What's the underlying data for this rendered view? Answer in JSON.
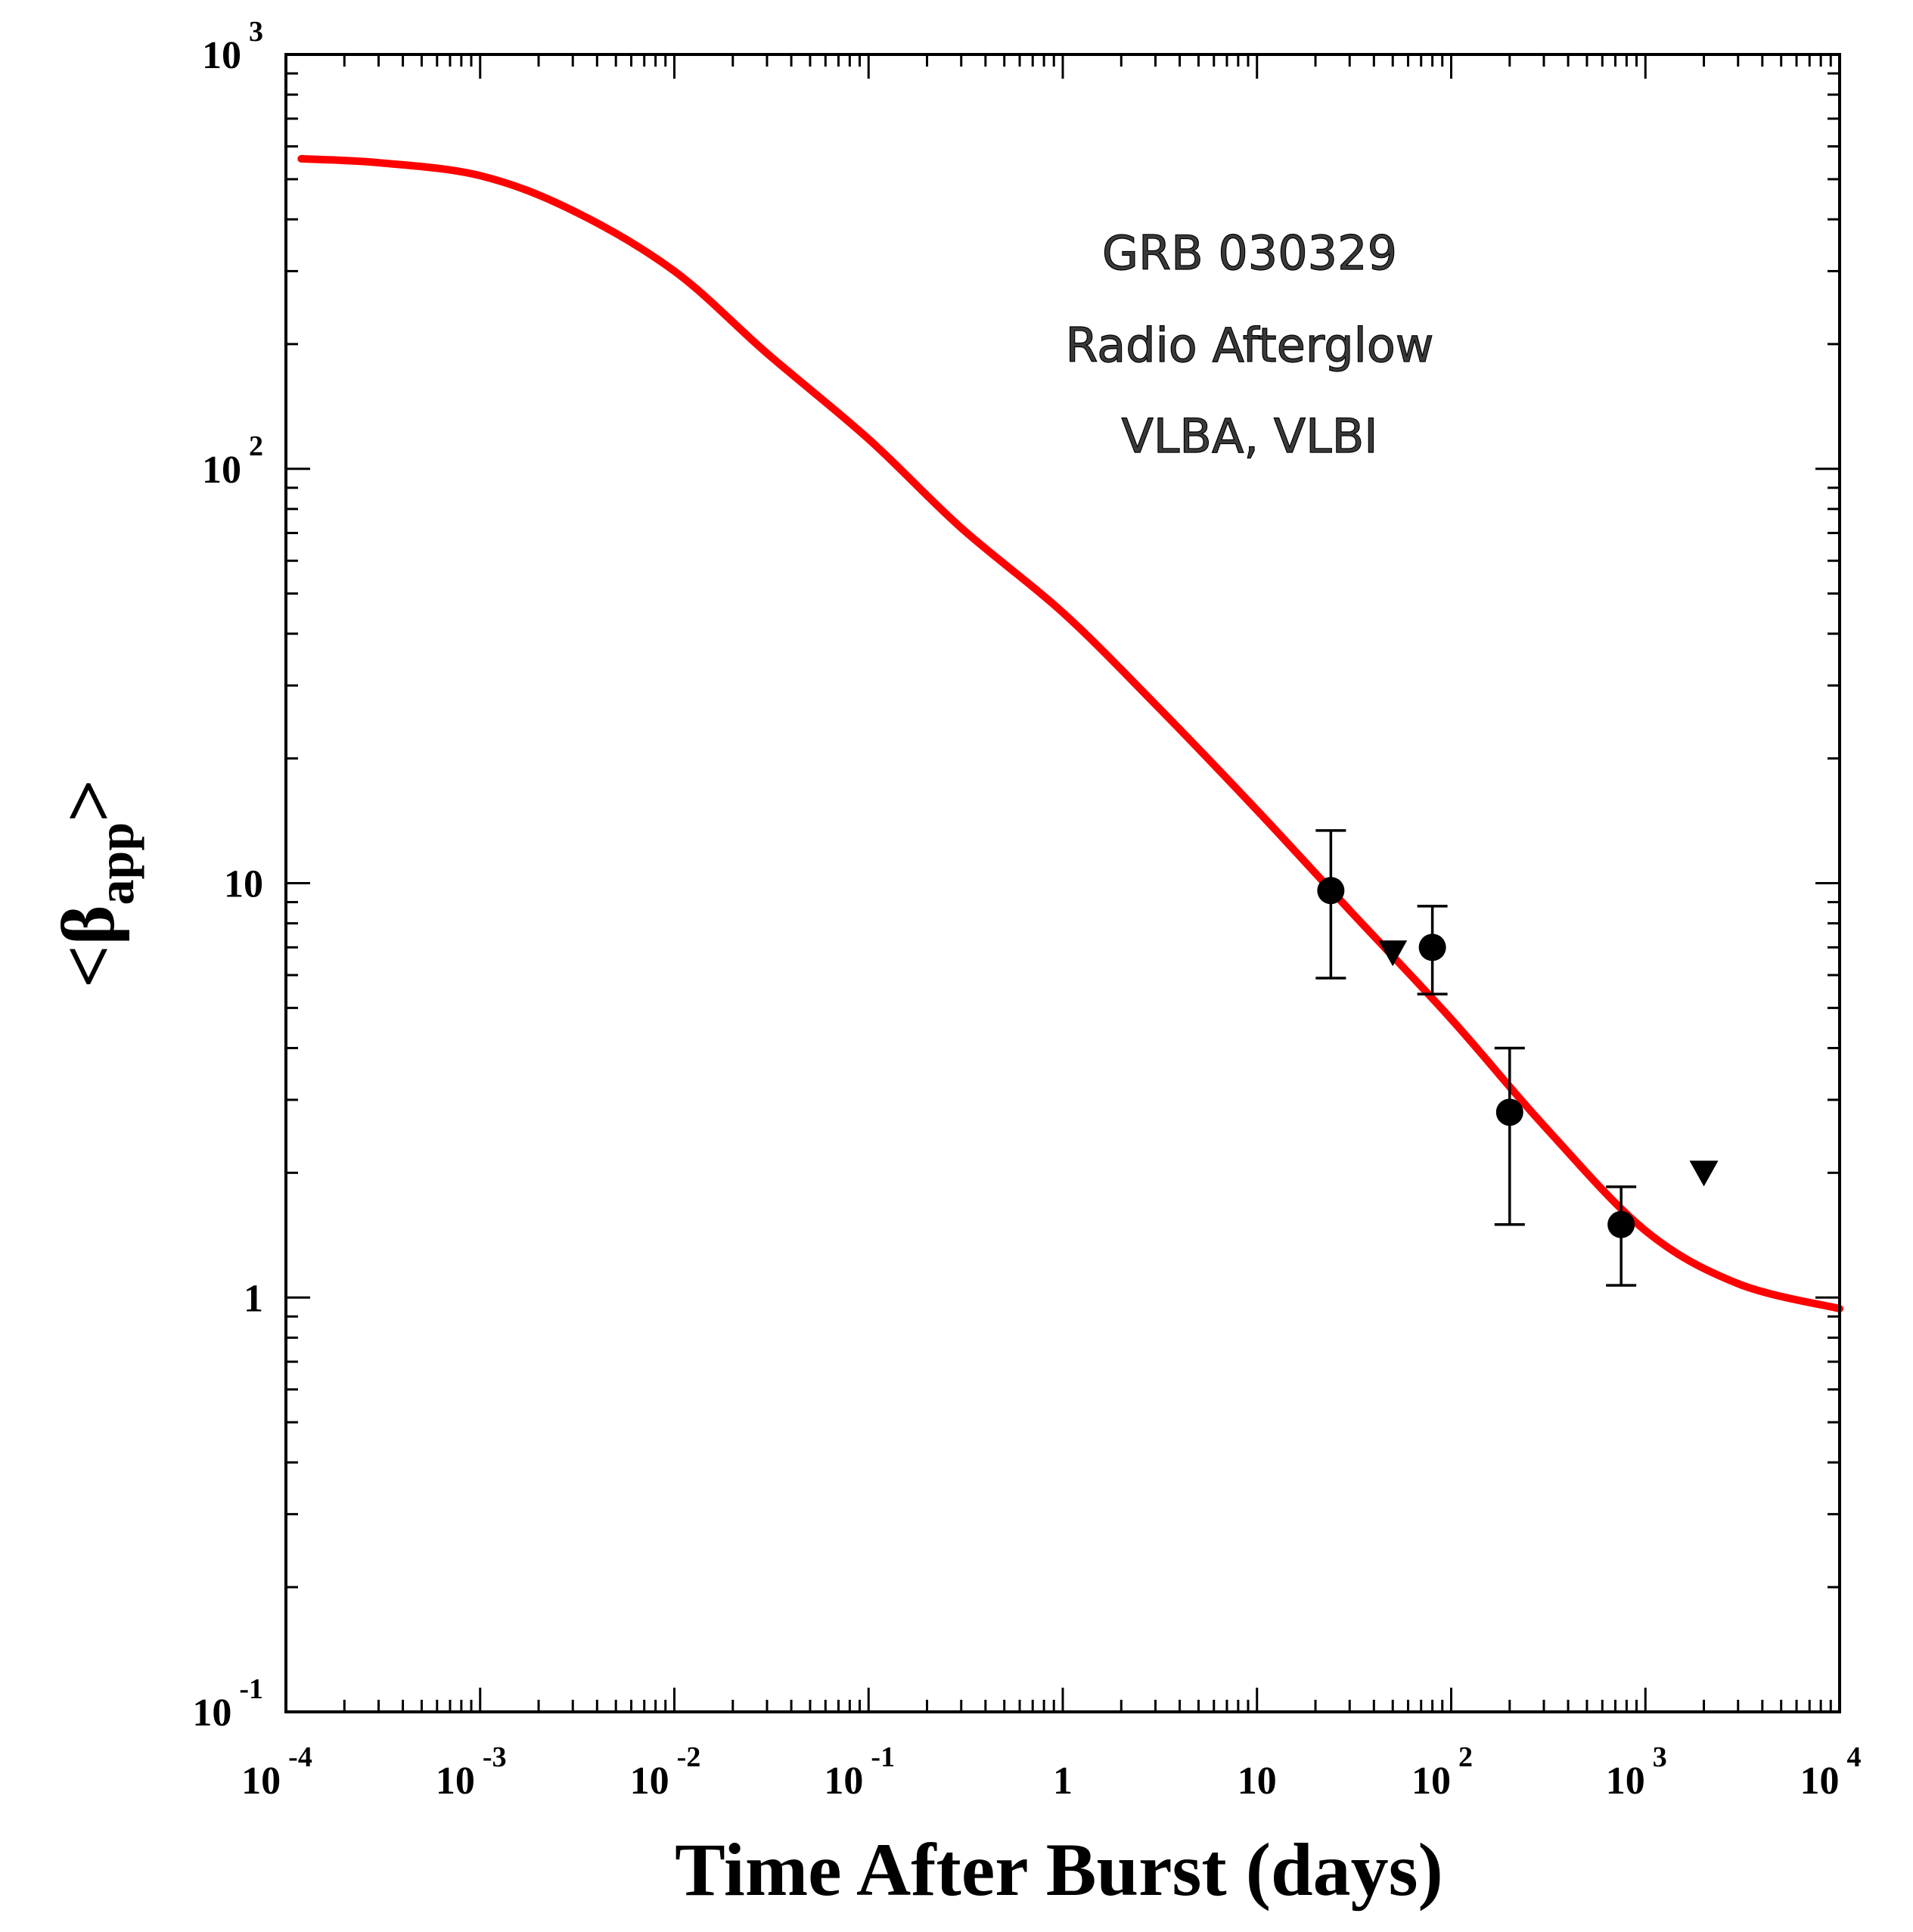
{
  "chart_data": {
    "type": "scatter",
    "title": "",
    "xlabel": "Time After Burst (days)",
    "ylabel": {
      "prefix": "<",
      "symbol": "β",
      "subscript": "app",
      "suffix": ">"
    },
    "xscale": "log",
    "yscale": "log",
    "xlim": [
      0.0001,
      10000
    ],
    "ylim": [
      0.1,
      1000
    ],
    "x_ticks": [
      {
        "base": "10",
        "exp": "-4"
      },
      {
        "base": "10",
        "exp": "-3"
      },
      {
        "base": "10",
        "exp": "-2"
      },
      {
        "base": "10",
        "exp": "-1"
      },
      {
        "base": "1",
        "exp": ""
      },
      {
        "base": "10",
        "exp": ""
      },
      {
        "base": "10",
        "exp": "2"
      },
      {
        "base": "10",
        "exp": "3"
      },
      {
        "base": "10",
        "exp": "4"
      }
    ],
    "y_ticks": [
      {
        "base": "10",
        "exp": "-1"
      },
      {
        "base": "1",
        "exp": ""
      },
      {
        "base": "10",
        "exp": ""
      },
      {
        "base": "10",
        "exp": "2"
      },
      {
        "base": "10",
        "exp": "3"
      }
    ],
    "annotations": [
      "GRB 030329",
      "Radio Afterglow",
      "VLBA, VLBI"
    ],
    "series": [
      {
        "name": "model curve",
        "kind": "line",
        "color": "#ff0000",
        "x": [
          0.00012,
          0.0003,
          0.001,
          0.003,
          0.01,
          0.03,
          0.1,
          0.3,
          1,
          3,
          10,
          30,
          100,
          300,
          1000,
          3000,
          10000
        ],
        "y": [
          560,
          548,
          510,
          420,
          300,
          190,
          118,
          72,
          45,
          27,
          15,
          8.6,
          4.7,
          2.6,
          1.45,
          1.08,
          0.94
        ]
      },
      {
        "name": "measurements",
        "kind": "points",
        "marker": "circle",
        "color": "#000000",
        "x": [
          24,
          80,
          200,
          750
        ],
        "y": [
          9.6,
          7.0,
          2.8,
          1.5
        ],
        "yerr_low": [
          5.9,
          5.4,
          1.5,
          1.07
        ],
        "yerr_high": [
          13.4,
          8.8,
          4.0,
          1.85
        ]
      },
      {
        "name": "upper limits",
        "kind": "points",
        "marker": "triangle-down",
        "color": "#000000",
        "x": [
          50,
          2000
        ],
        "y": [
          6.8,
          2.0
        ]
      }
    ]
  }
}
